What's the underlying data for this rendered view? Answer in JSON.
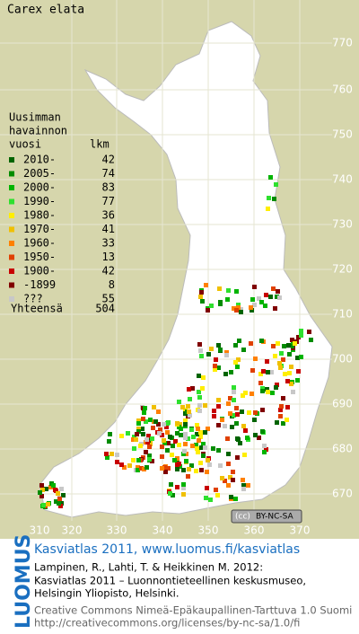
{
  "map": {
    "title": "Carex elata",
    "legend": {
      "header": [
        "Uusimman",
        "havainnon",
        "vuosi"
      ],
      "count_header": "lkm",
      "rows": [
        {
          "label": "2010-",
          "count": 42,
          "color": "#006400"
        },
        {
          "label": "2005-",
          "count": 74,
          "color": "#008c00"
        },
        {
          "label": "2000-",
          "count": 83,
          "color": "#00b400"
        },
        {
          "label": "1990-",
          "count": 77,
          "color": "#2ee02e"
        },
        {
          "label": "1980-",
          "count": 36,
          "color": "#ffee00"
        },
        {
          "label": "1970-",
          "count": 41,
          "color": "#f0c000"
        },
        {
          "label": "1960-",
          "count": 33,
          "color": "#ff8000"
        },
        {
          "label": "1950-",
          "count": 13,
          "color": "#e04000"
        },
        {
          "label": "1900-",
          "count": 42,
          "color": "#c80000"
        },
        {
          "label": "-1899",
          "count": 8,
          "color": "#800000"
        },
        {
          "label": "???",
          "count": 55,
          "color": "#c8c8c8"
        }
      ],
      "total_label": "Yhteensä",
      "total": 504
    },
    "y_grid_labels": [
      "770",
      "760",
      "750",
      "740",
      "730",
      "720",
      "710",
      "700",
      "690",
      "680",
      "670"
    ],
    "x_grid_labels": [
      "310",
      "320",
      "330",
      "340",
      "350",
      "360",
      "370"
    ],
    "license_badge": "BY-NC-SA"
  },
  "footer": {
    "logo": "LUOMUS",
    "heading": "Kasviatlas 2011, www.luomus.fi/kasviatlas",
    "citation": [
      "Lampinen, R., Lahti, T. & Heikkinen M. 2012:",
      "Kasviatlas 2011 – Luonnontieteellinen keskusmuseo,",
      "Helsingin Yliopisto, Helsinki."
    ],
    "license": [
      "Creative Commons Nimeä-Epäkaupallinen-Tarttuva 1.0 Suomi",
      "http://creativecommons.org/licenses/by-nc-sa/1.0/fi"
    ]
  }
}
